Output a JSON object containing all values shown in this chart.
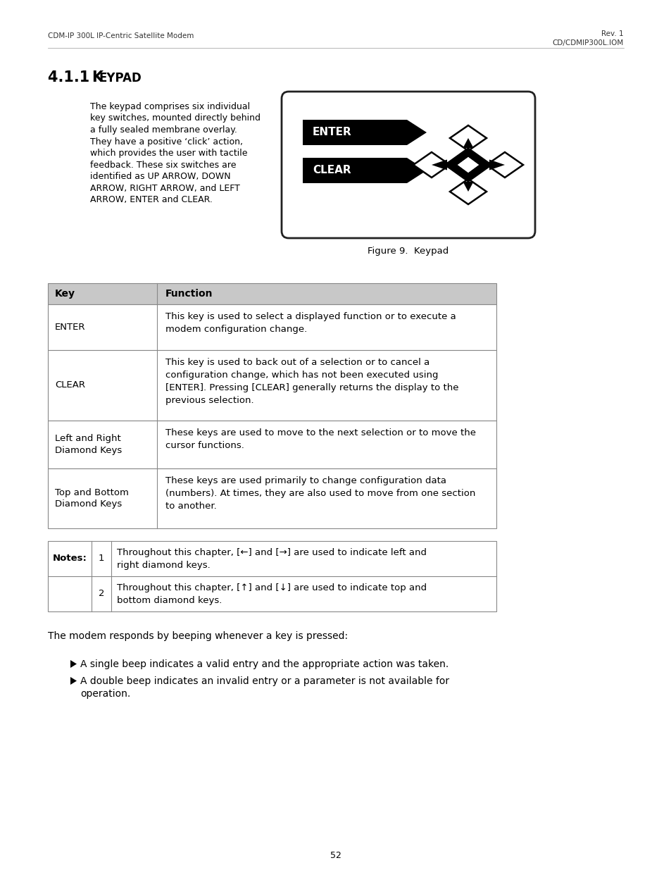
{
  "header_left": "CDM-IP 300L IP-Centric Satellite Modem",
  "header_right_line1": "Rev. 1",
  "header_right_line2": "CD/CDMIP300L.IOM",
  "section_title_prefix": "4.1.1 ",
  "section_title_K": "K",
  "section_title_rest": "EYPAD",
  "body_text_lines": [
    "The keypad comprises six individual",
    "key switches, mounted directly behind",
    "a fully sealed membrane overlay.",
    "They have a positive ‘click’ action,",
    "which provides the user with tactile",
    "feedback. These six switches are",
    "identified as UP ARROW, DOWN",
    "ARROW, RIGHT ARROW, and LEFT",
    "ARROW, ENTER and CLEAR."
  ],
  "figure_caption": "Figure 9.  Keypad",
  "table_header": [
    "Key",
    "Function"
  ],
  "table_rows": [
    [
      "ENTER",
      "This key is used to select a displayed function or to execute a\nmodem configuration change."
    ],
    [
      "CLEAR",
      "This key is used to back out of a selection or to cancel a\nconfiguration change, which has not been executed using\n[ENTER]. Pressing [CLEAR] generally returns the display to the\nprevious selection."
    ],
    [
      "Left and Right\nDiamond Keys",
      "These keys are used to move to the next selection or to move the\ncursor functions."
    ],
    [
      "Top and Bottom\nDiamond Keys",
      "These keys are used primarily to change configuration data\n(numbers). At times, they are also used to move from one section\nto another."
    ]
  ],
  "notes_rows": [
    [
      "1",
      "Throughout this chapter, [←] and [→] are used to indicate left and\nright diamond keys."
    ],
    [
      "2",
      "Throughout this chapter, [↑] and [↓] are used to indicate top and\nbottom diamond keys."
    ]
  ],
  "modem_text": "The modem responds by beeping whenever a key is pressed:",
  "bullet1": "A single beep indicates a valid entry and the appropriate action was taken.",
  "bullet2_line1": "A double beep indicates an invalid entry or a parameter is not available for",
  "bullet2_line2": "operation.",
  "page_number": "52",
  "bg_color": "#ffffff",
  "table_header_color": "#c8c8c8",
  "border_color": "#888888"
}
